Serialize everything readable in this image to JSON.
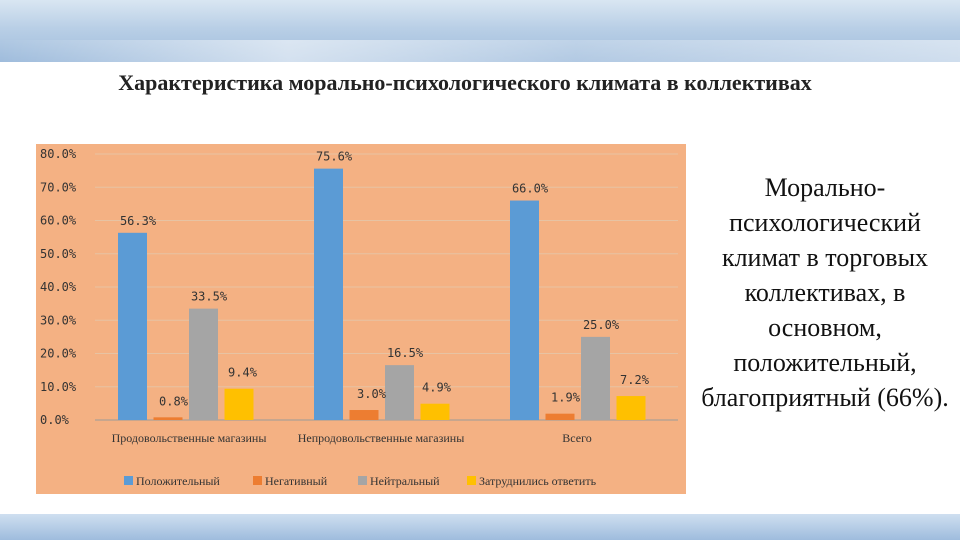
{
  "slide": {
    "title": "Характеристика морально-психологического климата в коллективах",
    "side_text": "Морально-психологический климат в торговых коллективах, в основном, положительный, благоприятный (66%)."
  },
  "colors": {
    "chart_bg": "#f4b183",
    "series": [
      "#5b9bd5",
      "#ed7d31",
      "#a5a5a5",
      "#ffc000"
    ]
  },
  "chart_data": {
    "type": "bar",
    "title": "",
    "xlabel": "",
    "ylabel": "",
    "categories": [
      "Продовольственные магазины",
      "Непродовольственные магазины",
      "Всего"
    ],
    "series": [
      {
        "name": "Положительный",
        "values": [
          56.3,
          75.6,
          66.0
        ]
      },
      {
        "name": "Негативный",
        "values": [
          0.8,
          3.0,
          1.9
        ]
      },
      {
        "name": "Нейтральный",
        "values": [
          33.5,
          16.5,
          25.0
        ]
      },
      {
        "name": "Затруднились ответить",
        "values": [
          9.4,
          4.9,
          7.2
        ]
      }
    ],
    "ylim": [
      0,
      80
    ],
    "yticks": [
      0,
      10,
      20,
      30,
      40,
      50,
      60,
      70,
      80
    ],
    "value_format": "percent_1dp",
    "grid": true,
    "legend": "bottom"
  }
}
